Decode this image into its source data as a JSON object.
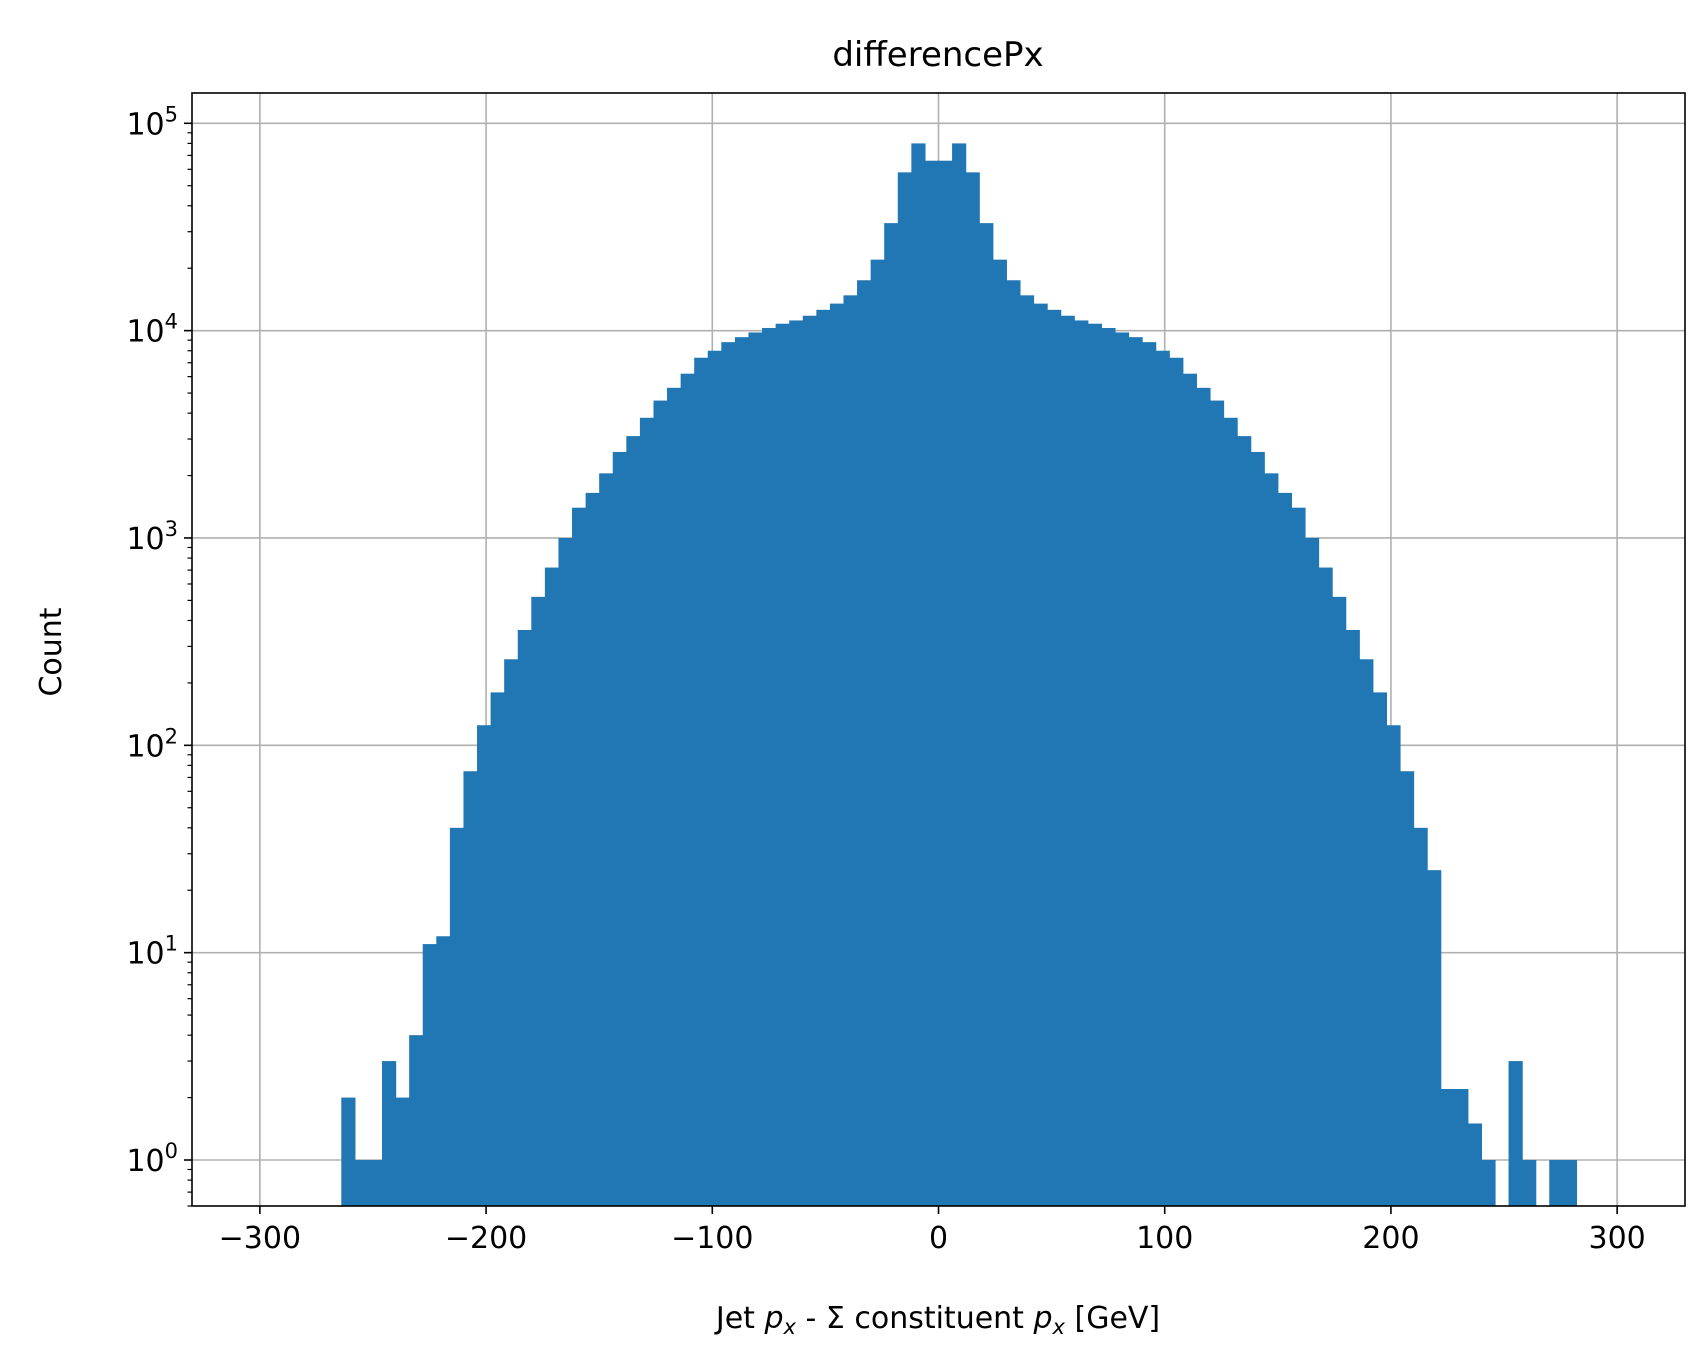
{
  "chart_data": {
    "type": "bar",
    "title": "differencePx",
    "xlabel": "Jet p_x - Σ constituent p_x [GeV]",
    "xlabel_parts": {
      "pre": "Jet ",
      "var1": "p",
      "sub1": "x",
      "mid": " - Σ constituent ",
      "var2": "p",
      "sub2": "x",
      "post": " [GeV]"
    },
    "ylabel": "Count",
    "xlim": [
      -330,
      330
    ],
    "ylim": [
      0.6,
      140000
    ],
    "y_scale": "log",
    "grid": true,
    "bar_color": "#2077b4",
    "x_ticks": [
      -300,
      -200,
      -100,
      0,
      100,
      200,
      300
    ],
    "x_tick_labels": [
      "−300",
      "−200",
      "−100",
      "0",
      "100",
      "200",
      "300"
    ],
    "y_ticks": [
      1,
      10,
      100,
      1000,
      10000,
      100000
    ],
    "y_tick_labels": [
      {
        "base": "10",
        "exp": "0"
      },
      {
        "base": "10",
        "exp": "1"
      },
      {
        "base": "10",
        "exp": "2"
      },
      {
        "base": "10",
        "exp": "3"
      },
      {
        "base": "10",
        "exp": "4"
      },
      {
        "base": "10",
        "exp": "5"
      }
    ],
    "bin_width": 6,
    "bin_edges_start": -264,
    "values": [
      2,
      1,
      1,
      3,
      2,
      4,
      11,
      12,
      40,
      75,
      125,
      180,
      260,
      360,
      520,
      720,
      1000,
      1400,
      1650,
      2050,
      2600,
      3100,
      3800,
      4600,
      5300,
      6200,
      7400,
      8000,
      8800,
      9300,
      9800,
      10300,
      10800,
      11200,
      11800,
      12600,
      13500,
      14800,
      17500,
      22000,
      33000,
      58000,
      80000,
      66000,
      66000,
      80000,
      58000,
      33000,
      22000,
      17500,
      14800,
      13500,
      12600,
      11800,
      11200,
      10800,
      10300,
      9800,
      9300,
      8800,
      8000,
      7400,
      6200,
      5300,
      4600,
      3800,
      3100,
      2600,
      2050,
      1650,
      1400,
      1000,
      720,
      520,
      360,
      260,
      180,
      125,
      75,
      40,
      25,
      2.2,
      2.2,
      1.5,
      1,
      0,
      3,
      1,
      0,
      1,
      1
    ]
  }
}
